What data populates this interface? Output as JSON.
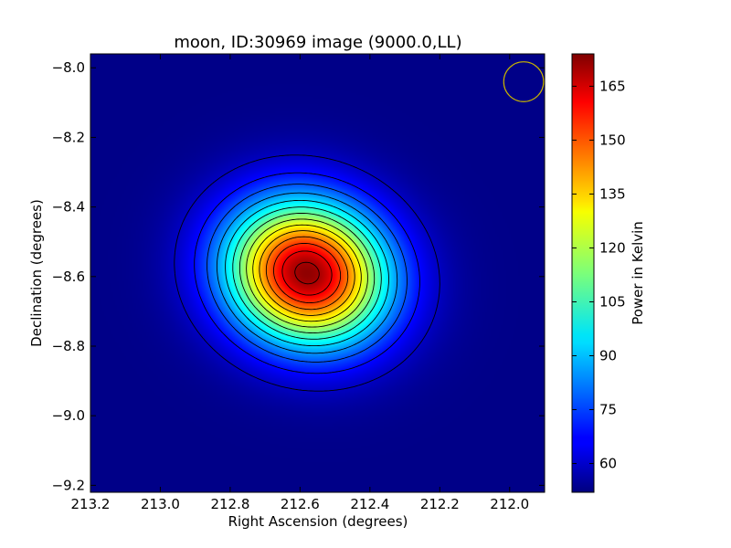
{
  "chart_data": {
    "type": "heatmap",
    "title": "moon, ID:30969 image (9000.0,LL)",
    "xlabel": "Right Ascension (degrees)",
    "ylabel": "Declination (degrees)",
    "colorbar_label": "Power in Kelvin",
    "xlim": [
      213.2,
      211.9
    ],
    "ylim": [
      -9.22,
      -7.96
    ],
    "x_ticks": [
      213.2,
      213.0,
      212.8,
      212.6,
      212.4,
      212.2,
      212.0
    ],
    "x_tick_labels": [
      "213.2",
      "213.0",
      "212.8",
      "212.6",
      "212.4",
      "212.2",
      "212.0"
    ],
    "y_ticks": [
      -8.0,
      -8.2,
      -8.4,
      -8.6,
      -8.8,
      -9.0,
      -9.2
    ],
    "y_tick_labels": [
      "−8.0",
      "−8.2",
      "−8.4",
      "−8.6",
      "−8.8",
      "−9.0",
      "−9.2"
    ],
    "colorbar_range": [
      52,
      174
    ],
    "colorbar_ticks": [
      60,
      75,
      90,
      105,
      120,
      135,
      150,
      165
    ],
    "colorbar_tick_labels": [
      "60",
      "75",
      "90",
      "105",
      "120",
      "135",
      "150",
      "165"
    ],
    "colormap": "jet",
    "source": {
      "center_ra": 212.58,
      "center_dec": -8.59,
      "peak_kelvin": 172,
      "background_kelvin": 53,
      "sigma_major_deg": 0.16,
      "sigma_minor_deg": 0.14
    },
    "contour_color": "#000000",
    "beam": {
      "ra": 211.96,
      "dec": -8.04,
      "radius_deg": 0.057,
      "color": "#c8b400"
    },
    "grid": false
  }
}
